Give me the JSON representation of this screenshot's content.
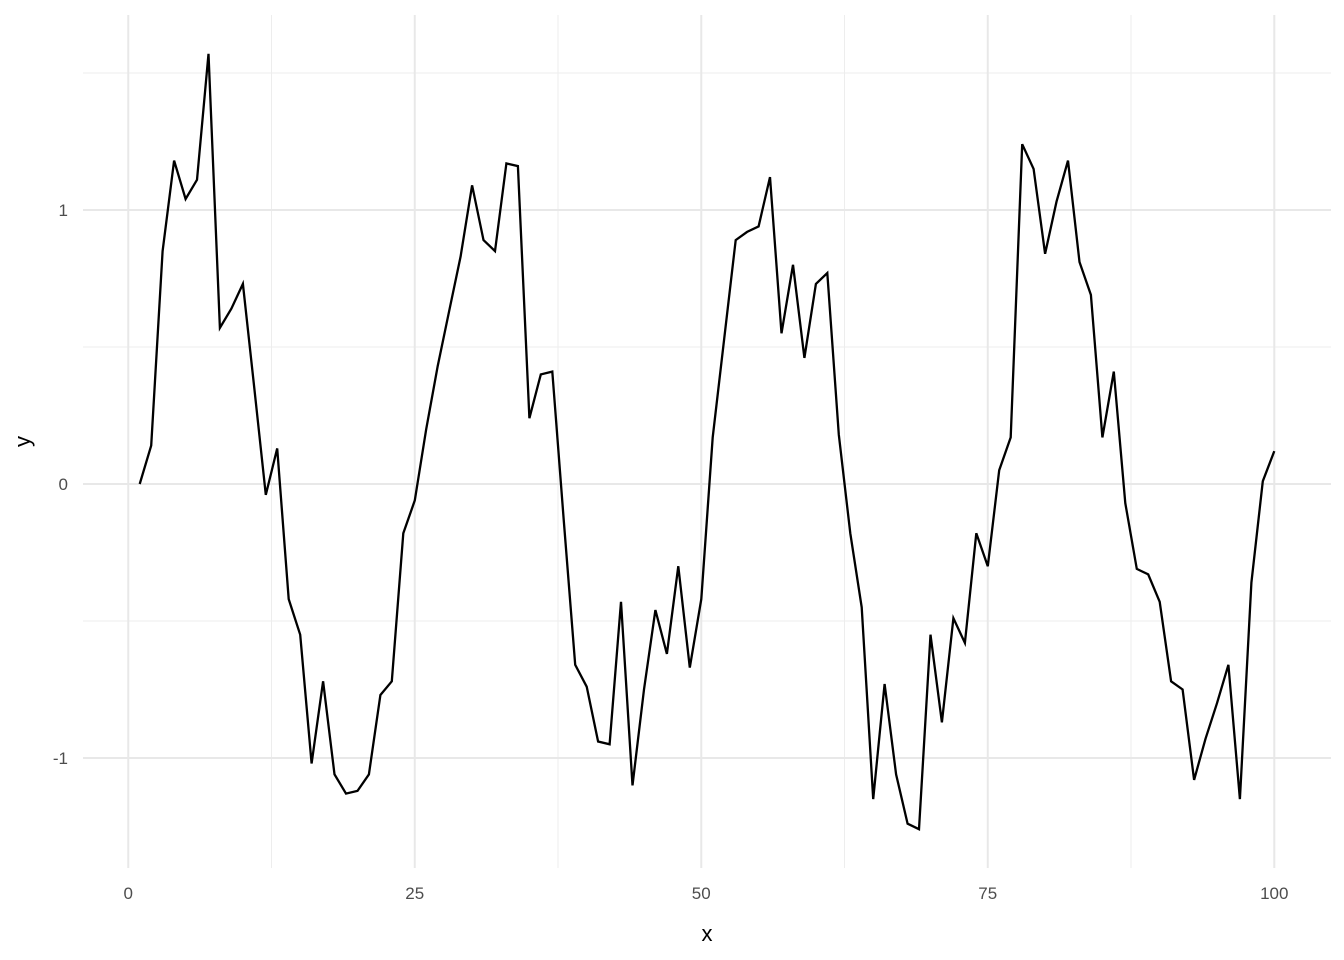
{
  "chart_data": {
    "type": "line",
    "title": "",
    "xlabel": "x",
    "ylabel": "y",
    "legend_position": "none",
    "grid": true,
    "background": "#FFFFFF",
    "line_color": "#000000",
    "grid_major_color": "#E8E8E8",
    "grid_minor_color": "#EDEDED",
    "tick_label_color": "#4D4D4D",
    "axis_title_color": "#000000",
    "xlim": [
      -3.95,
      104.95
    ],
    "ylim": [
      -1.4015,
      1.7115
    ],
    "x_major_ticks": [
      0,
      25,
      50,
      75,
      100
    ],
    "x_major_tick_labels": [
      "0",
      "25",
      "50",
      "75",
      "100"
    ],
    "x_minor_ticks": [
      12.5,
      37.5,
      62.5,
      87.5
    ],
    "y_major_ticks": [
      -1,
      0,
      1
    ],
    "y_major_tick_labels": [
      "-1",
      "0",
      "1"
    ],
    "y_minor_ticks": [
      -0.5,
      0.5,
      1.5
    ],
    "x": [
      1,
      2,
      3,
      4,
      5,
      6,
      7,
      8,
      9,
      10,
      11,
      12,
      13,
      14,
      15,
      16,
      17,
      18,
      19,
      20,
      21,
      22,
      23,
      24,
      25,
      26,
      27,
      28,
      29,
      30,
      31,
      32,
      33,
      34,
      35,
      36,
      37,
      38,
      39,
      40,
      41,
      42,
      43,
      44,
      45,
      46,
      47,
      48,
      49,
      50,
      51,
      52,
      53,
      54,
      55,
      56,
      57,
      58,
      59,
      60,
      61,
      62,
      63,
      64,
      65,
      66,
      67,
      68,
      69,
      70,
      71,
      72,
      73,
      74,
      75,
      76,
      77,
      78,
      79,
      80,
      81,
      82,
      83,
      84,
      85,
      86,
      87,
      88,
      89,
      90,
      91,
      92,
      93,
      94,
      95,
      96,
      97,
      98,
      99,
      100
    ],
    "y": [
      0.0,
      0.14,
      0.85,
      1.18,
      1.04,
      1.11,
      1.57,
      0.57,
      0.64,
      0.73,
      0.35,
      -0.04,
      0.13,
      -0.42,
      -0.55,
      -1.02,
      -0.72,
      -1.06,
      -1.13,
      -1.12,
      -1.06,
      -0.77,
      -0.72,
      -0.18,
      -0.06,
      0.2,
      0.43,
      0.63,
      0.83,
      1.09,
      0.89,
      0.85,
      1.17,
      1.16,
      0.24,
      0.4,
      0.41,
      -0.13,
      -0.66,
      -0.74,
      -0.94,
      -0.95,
      -0.43,
      -1.1,
      -0.75,
      -0.46,
      -0.62,
      -0.3,
      -0.67,
      -0.42,
      0.17,
      0.53,
      0.89,
      0.92,
      0.94,
      1.12,
      0.55,
      0.8,
      0.46,
      0.73,
      0.77,
      0.18,
      -0.18,
      -0.45,
      -1.15,
      -0.73,
      -1.06,
      -1.24,
      -1.26,
      -0.55,
      -0.87,
      -0.49,
      -0.58,
      -0.18,
      -0.3,
      0.05,
      0.17,
      1.24,
      1.15,
      0.84,
      1.03,
      1.18,
      0.81,
      0.69,
      0.17,
      0.41,
      -0.07,
      -0.31,
      -0.33,
      -0.43,
      -0.72,
      -0.75,
      -1.08,
      -0.93,
      -0.8,
      -0.66,
      -1.15,
      -0.36,
      0.01,
      0.12
    ]
  }
}
